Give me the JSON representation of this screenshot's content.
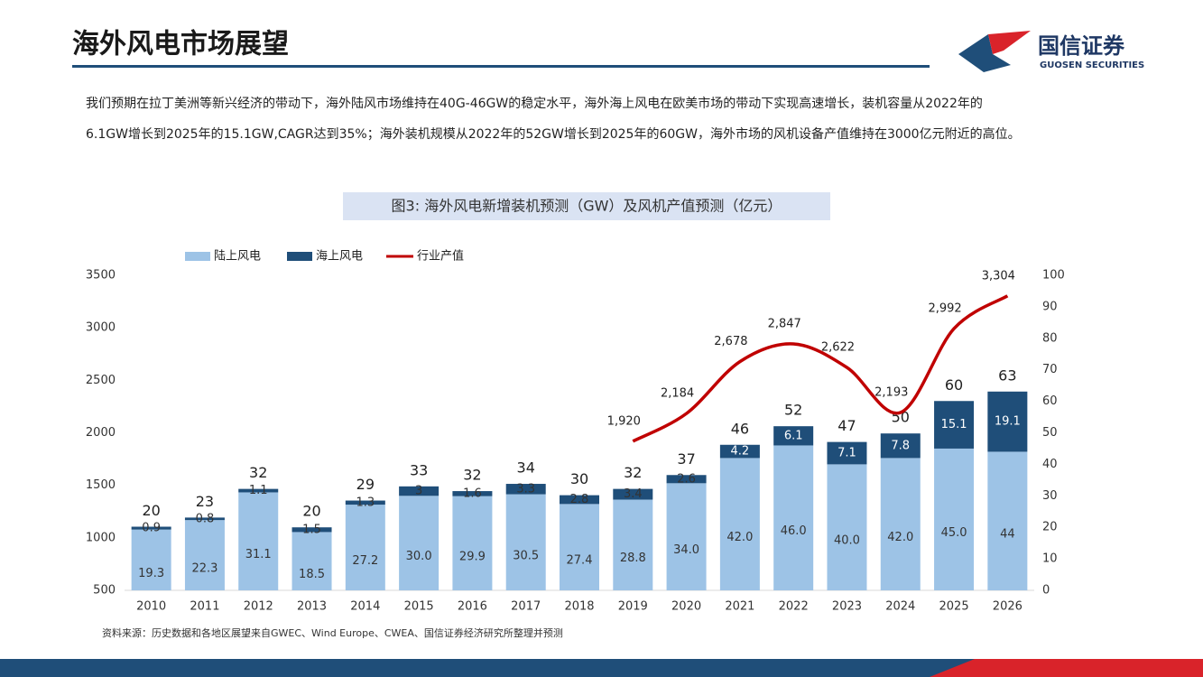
{
  "header": {
    "title": "海外风电市场展望",
    "logo_cn": "国信证券",
    "logo_en": "GUOSEN SECURITIES"
  },
  "paragraph": [
    "我们预期在拉丁美洲等新兴经济的带动下，海外陆风市场维持在40G-46GW的稳定水平，海外海上风电在欧美市场的带动下实现高速增长，装机容量从2022年的",
    "6.1GW增长到2025年的15.1GW,CAGR达到35%；海外装机规模从2022年的52GW增长到2025年的60GW，海外市场的风机设备产值维持在3000亿元附近的高位。"
  ],
  "chart_data": {
    "type": "bar_line",
    "title": "图3:  海外风电新增装机预测（GW）及风机产值预测（亿元）",
    "source": "资料来源：历史数据和各地区展望来自GWEC、Wind Europe、CWEA、国信证券经济研究所整理并预测",
    "categories": [
      "2010",
      "2011",
      "2012",
      "2013",
      "2014",
      "2015",
      "2016",
      "2017",
      "2018",
      "2019",
      "2020",
      "2021",
      "2022",
      "2023",
      "2024",
      "2025",
      "2026"
    ],
    "series": [
      {
        "name": "陆上风电",
        "type": "bar",
        "axis": "y2",
        "color": "#9dc3e6",
        "values": [
          19.3,
          22.3,
          31.1,
          18.5,
          27.2,
          30.0,
          29.9,
          30.5,
          27.4,
          28.8,
          34.0,
          42.0,
          46.0,
          40.0,
          42.0,
          45.0,
          44
        ],
        "value_labels": [
          "19.3",
          "22.3",
          "31.1",
          "18.5",
          "27.2",
          "30.0",
          "29.9",
          "30.5",
          "27.4",
          "28.8",
          "34.0",
          "42.0",
          "46.0",
          "40.0",
          "42.0",
          "45.0",
          "44"
        ]
      },
      {
        "name": "海上风电",
        "type": "bar",
        "axis": "y2",
        "color": "#1f4e79",
        "values": [
          0.9,
          0.8,
          1.1,
          1.5,
          1.3,
          3.0,
          1.6,
          3.3,
          2.8,
          3.4,
          2.6,
          4.2,
          6.1,
          7.1,
          7.8,
          15.1,
          19.1
        ]
      },
      {
        "name": "行业产值",
        "type": "line",
        "axis": "y",
        "color": "#c00000",
        "values": [
          null,
          null,
          null,
          null,
          null,
          null,
          null,
          null,
          null,
          1920,
          2184,
          2678,
          2847,
          2622,
          2193,
          2992,
          3304
        ],
        "value_labels": [
          null,
          null,
          null,
          null,
          null,
          null,
          null,
          null,
          null,
          "1,920",
          "2,184",
          "2,678",
          "2,847",
          "2,622",
          "2,193",
          "2,992",
          "3,304"
        ]
      }
    ],
    "totals": [
      20,
      23,
      32,
      20,
      29,
      33,
      32,
      34,
      30,
      32,
      37,
      46,
      52,
      47,
      50,
      60,
      63
    ],
    "ylim": [
      500,
      3500
    ],
    "yticks": [
      500,
      1000,
      1500,
      2000,
      2500,
      3000,
      3500
    ],
    "y2lim": [
      0,
      100
    ],
    "y2ticks": [
      0,
      10,
      20,
      30,
      40,
      50,
      60,
      70,
      80,
      90,
      100
    ]
  }
}
